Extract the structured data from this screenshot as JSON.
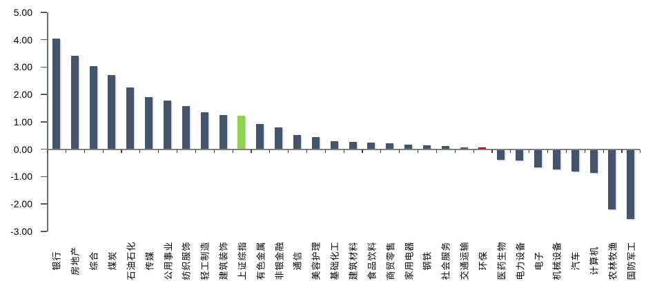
{
  "chart_data": {
    "type": "bar",
    "title": "",
    "xlabel": "",
    "ylabel": "",
    "categories": [
      "银行",
      "房地产",
      "综合",
      "煤炭",
      "石油石化",
      "传媒",
      "公用事业",
      "纺织服饰",
      "轻工制造",
      "建筑装饰",
      "上证综指",
      "有色金属",
      "非银金融",
      "通信",
      "美容护理",
      "基础化工",
      "建筑材料",
      "食品饮料",
      "商贸零售",
      "家用电器",
      "钢铁",
      "社会服务",
      "交通运输",
      "环保",
      "医药生物",
      "电力设备",
      "电子",
      "机械设备",
      "汽车",
      "计算机",
      "农林牧渔",
      "国防军工"
    ],
    "values": [
      4.05,
      3.4,
      3.02,
      2.71,
      2.24,
      1.9,
      1.78,
      1.56,
      1.35,
      1.25,
      1.21,
      0.91,
      0.79,
      0.52,
      0.43,
      0.3,
      0.26,
      0.24,
      0.22,
      0.17,
      0.14,
      0.12,
      0.07,
      0.06,
      -0.38,
      -0.41,
      -0.66,
      -0.75,
      -0.83,
      -0.87,
      -2.2,
      -2.55
    ],
    "ylim": [
      -3,
      5
    ],
    "ytick_step": 1,
    "ytick_labels": [
      "5.00",
      "4.00",
      "3.00",
      "2.00",
      "1.00",
      "0.00",
      "-1.00",
      "-2.00",
      "-3.00"
    ],
    "grid": false,
    "legend": "none",
    "colors": {
      "default_bar": "#44546A",
      "highlight_green": "#92D050",
      "highlight_red": "#C00000",
      "axis_line": "#6E6E6E",
      "zero_line": "#808080",
      "tick": "#404040",
      "text": "#000000"
    },
    "highlighted_bars": [
      {
        "index": 10,
        "category": "上证综指",
        "color": "#92D050"
      },
      {
        "index": 23,
        "category": "环保",
        "color": "#C00000"
      }
    ]
  }
}
